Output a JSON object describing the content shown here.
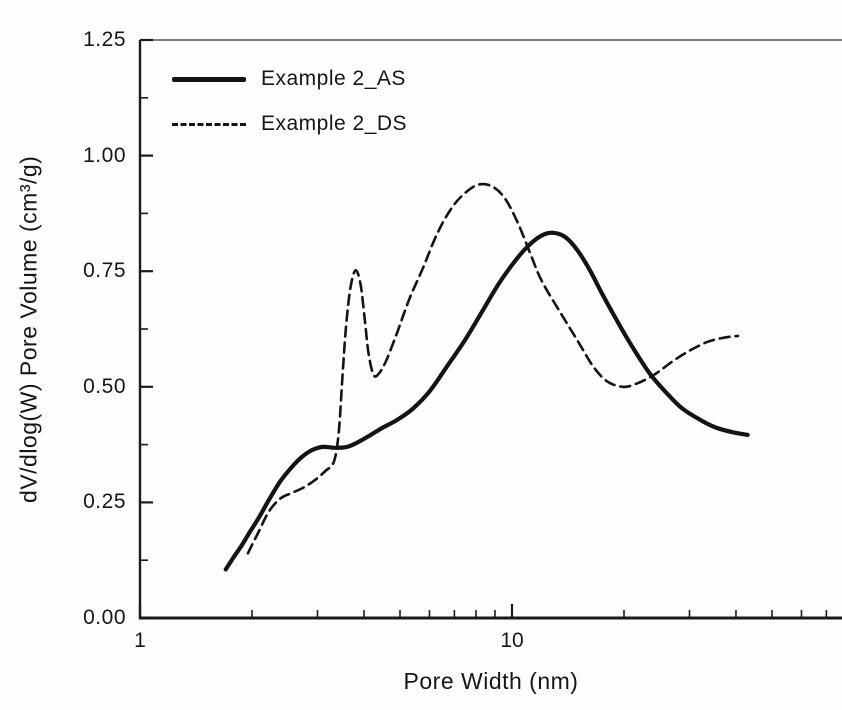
{
  "figure": {
    "background": "#fdfdfd",
    "line_color": "#141414",
    "frame_color": "#1a1a1a",
    "top_border_color": "#555555"
  },
  "chart_data": {
    "type": "line",
    "title": "",
    "xlabel": "Pore Width (nm)",
    "ylabel": "dV/dlog(W) Pore Volume (cm³/g)",
    "x_scale": "log10",
    "xlim": [
      1,
      77
    ],
    "ylim": [
      0,
      1.25
    ],
    "grid": false,
    "legend_position": "top-left",
    "x_major_ticks": [
      1,
      10
    ],
    "x_major_tick_labels": [
      "1",
      "10"
    ],
    "x_minor_ticks": [
      2,
      3,
      4,
      5,
      6,
      7,
      8,
      9,
      20,
      30,
      40,
      50,
      60,
      70
    ],
    "y_major_ticks": [
      0,
      0.25,
      0.5,
      0.75,
      1.0,
      1.25
    ],
    "y_major_tick_labels": [
      "0.00",
      "0.25",
      "0.50",
      "0.75",
      "1.00",
      "1.25"
    ],
    "y_minor_ticks": [
      0.125,
      0.375,
      0.625,
      0.875,
      1.125
    ],
    "series": [
      {
        "name": "Example 2_AS",
        "style": "solid",
        "points": [
          [
            1.7,
            0.105
          ],
          [
            1.78,
            0.13
          ],
          [
            1.87,
            0.155
          ],
          [
            1.97,
            0.185
          ],
          [
            2.08,
            0.215
          ],
          [
            2.22,
            0.255
          ],
          [
            2.38,
            0.295
          ],
          [
            2.55,
            0.325
          ],
          [
            2.72,
            0.348
          ],
          [
            2.9,
            0.363
          ],
          [
            3.1,
            0.37
          ],
          [
            3.35,
            0.368
          ],
          [
            3.6,
            0.37
          ],
          [
            3.85,
            0.38
          ],
          [
            4.15,
            0.395
          ],
          [
            4.5,
            0.412
          ],
          [
            4.9,
            0.428
          ],
          [
            5.4,
            0.452
          ],
          [
            6.0,
            0.49
          ],
          [
            6.7,
            0.545
          ],
          [
            7.5,
            0.603
          ],
          [
            8.3,
            0.662
          ],
          [
            9.2,
            0.722
          ],
          [
            10.1,
            0.768
          ],
          [
            11.0,
            0.803
          ],
          [
            12.0,
            0.827
          ],
          [
            12.9,
            0.833
          ],
          [
            13.9,
            0.824
          ],
          [
            15.0,
            0.795
          ],
          [
            16.2,
            0.752
          ],
          [
            17.5,
            0.7
          ],
          [
            19.0,
            0.648
          ],
          [
            21.0,
            0.588
          ],
          [
            23.5,
            0.528
          ],
          [
            26.0,
            0.487
          ],
          [
            28.5,
            0.455
          ],
          [
            31.5,
            0.432
          ],
          [
            35.0,
            0.413
          ],
          [
            39.0,
            0.402
          ],
          [
            43.0,
            0.396
          ]
        ]
      },
      {
        "name": "Example 2_DS",
        "style": "dashed",
        "points": [
          [
            1.95,
            0.14
          ],
          [
            2.08,
            0.185
          ],
          [
            2.22,
            0.23
          ],
          [
            2.38,
            0.258
          ],
          [
            2.55,
            0.27
          ],
          [
            2.75,
            0.282
          ],
          [
            2.95,
            0.298
          ],
          [
            3.15,
            0.318
          ],
          [
            3.32,
            0.338
          ],
          [
            3.42,
            0.4
          ],
          [
            3.5,
            0.52
          ],
          [
            3.58,
            0.63
          ],
          [
            3.68,
            0.715
          ],
          [
            3.8,
            0.752
          ],
          [
            3.92,
            0.72
          ],
          [
            4.02,
            0.645
          ],
          [
            4.12,
            0.57
          ],
          [
            4.25,
            0.525
          ],
          [
            4.4,
            0.53
          ],
          [
            4.6,
            0.558
          ],
          [
            4.9,
            0.615
          ],
          [
            5.3,
            0.69
          ],
          [
            5.75,
            0.755
          ],
          [
            6.3,
            0.832
          ],
          [
            6.9,
            0.888
          ],
          [
            7.55,
            0.922
          ],
          [
            8.2,
            0.938
          ],
          [
            8.9,
            0.932
          ],
          [
            9.6,
            0.906
          ],
          [
            10.4,
            0.852
          ],
          [
            11.2,
            0.788
          ],
          [
            12.0,
            0.73
          ],
          [
            13.5,
            0.66
          ],
          [
            15.0,
            0.6
          ],
          [
            16.5,
            0.545
          ],
          [
            18.0,
            0.512
          ],
          [
            19.8,
            0.5
          ],
          [
            21.5,
            0.506
          ],
          [
            24.0,
            0.525
          ],
          [
            27.0,
            0.555
          ],
          [
            30.0,
            0.578
          ],
          [
            33.5,
            0.597
          ],
          [
            37.0,
            0.606
          ],
          [
            40.5,
            0.61
          ]
        ]
      }
    ]
  }
}
